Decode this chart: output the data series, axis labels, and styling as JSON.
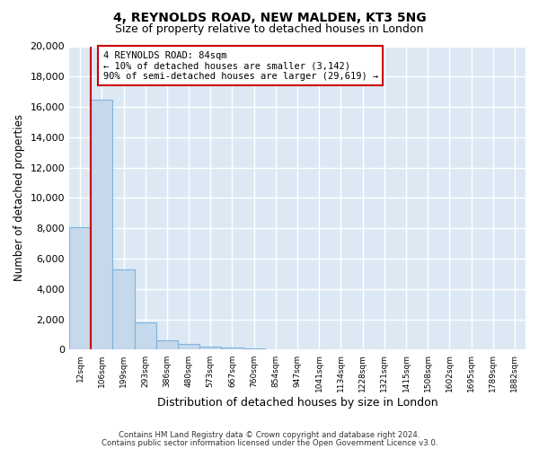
{
  "title": "4, REYNOLDS ROAD, NEW MALDEN, KT3 5NG",
  "subtitle": "Size of property relative to detached houses in London",
  "xlabel": "Distribution of detached houses by size in London",
  "ylabel": "Number of detached properties",
  "footnote1": "Contains HM Land Registry data © Crown copyright and database right 2024.",
  "footnote2": "Contains public sector information licensed under the Open Government Licence v3.0.",
  "annotation_line1": "4 REYNOLDS ROAD: 84sqm",
  "annotation_line2": "← 10% of detached houses are smaller (3,142)",
  "annotation_line3": "90% of semi-detached houses are larger (29,619) →",
  "bar_color": "#c5d8ec",
  "bar_edgecolor": "#7fb3d9",
  "redline_color": "#cc0000",
  "annotation_box_edgecolor": "#cc0000",
  "annotation_box_facecolor": "#ffffff",
  "background_color": "#dce9f5",
  "ylim": [
    0,
    20000
  ],
  "yticks": [
    0,
    2000,
    4000,
    6000,
    8000,
    10000,
    12000,
    14000,
    16000,
    18000,
    20000
  ],
  "categories": [
    "12sqm",
    "106sqm",
    "199sqm",
    "293sqm",
    "386sqm",
    "480sqm",
    "573sqm",
    "667sqm",
    "760sqm",
    "854sqm",
    "947sqm",
    "1041sqm",
    "1134sqm",
    "1228sqm",
    "1321sqm",
    "1415sqm",
    "1508sqm",
    "1602sqm",
    "1695sqm",
    "1789sqm",
    "1882sqm"
  ],
  "values": [
    8100,
    16500,
    5300,
    1800,
    600,
    360,
    210,
    130,
    80,
    50,
    10,
    0,
    0,
    0,
    0,
    0,
    0,
    0,
    0,
    0,
    0
  ],
  "redline_x": 1.0,
  "figsize": [
    6.0,
    5.0
  ],
  "dpi": 100
}
